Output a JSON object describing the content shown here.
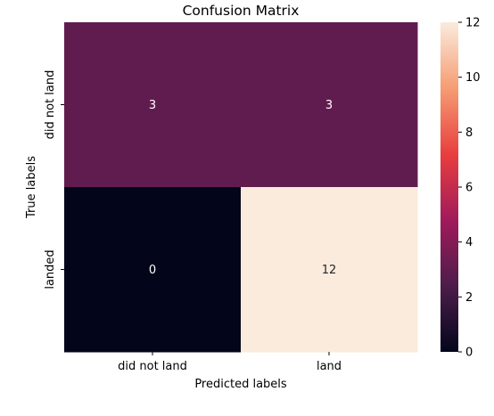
{
  "chart_data": {
    "type": "heatmap",
    "title": "Confusion Matrix",
    "xlabel": "Predicted labels",
    "ylabel": "True labels",
    "x_categories": [
      "did not land",
      "land"
    ],
    "y_categories": [
      "did not land",
      "landed"
    ],
    "values": [
      [
        3,
        3
      ],
      [
        0,
        12
      ]
    ],
    "colorbar": {
      "vmin": 0,
      "vmax": 12,
      "ticks": [
        0,
        2,
        4,
        6,
        8,
        10,
        12
      ],
      "colormap": [
        "#03051a",
        "#4c1d4b",
        "#a11a5b",
        "#e83f3f",
        "#f69c73",
        "#faebdd"
      ]
    },
    "annotation_colors": {
      "light_cell": "#262626",
      "dark_cell": "#ffffff"
    }
  }
}
